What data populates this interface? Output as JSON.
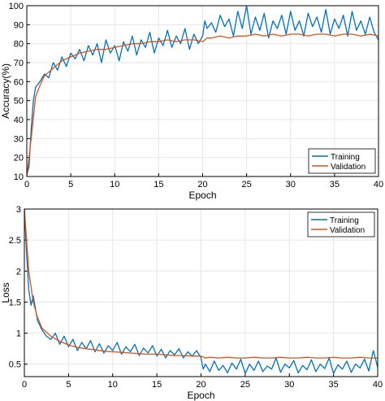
{
  "colors": {
    "training": "#0072BD",
    "validation": "#D95319",
    "grid": "#e6e6e6",
    "axis": "#000000"
  },
  "chart_data": [
    {
      "type": "line",
      "xlabel": "Epoch",
      "ylabel": "Accuracy(%)",
      "xlim": [
        0,
        40
      ],
      "ylim": [
        10,
        100
      ],
      "xticks": [
        "0",
        "5",
        "10",
        "15",
        "20",
        "25",
        "30",
        "35",
        "40"
      ],
      "yticks": [
        "10",
        "20",
        "30",
        "40",
        "50",
        "60",
        "70",
        "80",
        "90",
        "100"
      ],
      "grid": true,
      "legend_position": "bottom-right",
      "series": [
        {
          "name": "Training",
          "color_key": "training",
          "x": [
            0,
            0.25,
            0.5,
            0.75,
            1,
            1.5,
            2,
            2.5,
            3,
            3.5,
            4,
            4.5,
            5,
            5.5,
            6,
            6.5,
            7,
            7.5,
            8,
            8.5,
            9,
            9.5,
            10,
            10.5,
            11,
            11.5,
            12,
            12.5,
            13,
            13.5,
            14,
            14.5,
            15,
            15.5,
            16,
            16.5,
            17,
            17.5,
            18,
            18.5,
            19,
            19.5,
            20,
            20.25,
            20.5,
            21,
            21.5,
            22,
            22.5,
            23,
            23.5,
            24,
            24.5,
            25,
            25.5,
            26,
            26.5,
            27,
            27.5,
            28,
            28.5,
            29,
            29.5,
            30,
            30.5,
            31,
            31.5,
            32,
            32.5,
            33,
            33.5,
            34,
            34.5,
            35,
            35.5,
            36,
            36.5,
            37,
            37.5,
            38,
            38.5,
            39,
            39.5,
            40
          ],
          "values": [
            11,
            15,
            35,
            50,
            57,
            60,
            64,
            62,
            70,
            66,
            73,
            68,
            75,
            72,
            77,
            71,
            79,
            74,
            80,
            70,
            82,
            75,
            79,
            71,
            81,
            76,
            84,
            74,
            82,
            78,
            86,
            75,
            83,
            79,
            87,
            78,
            84,
            80,
            88,
            77,
            85,
            80,
            84,
            92,
            88,
            91,
            86,
            95,
            89,
            93,
            84,
            97,
            88,
            100,
            85,
            94,
            87,
            96,
            83,
            92,
            88,
            95,
            85,
            97,
            87,
            92,
            84,
            96,
            89,
            94,
            86,
            98,
            85,
            93,
            88,
            95,
            84,
            97,
            87,
            92,
            85,
            94,
            86,
            82
          ]
        },
        {
          "name": "Validation",
          "color_key": "validation",
          "x": [
            0,
            0.5,
            1,
            1.5,
            2,
            3,
            4,
            5,
            6,
            7,
            8,
            9,
            10,
            11,
            12,
            13,
            14,
            15,
            16,
            17,
            18,
            19,
            20,
            20.5,
            21,
            22,
            23,
            24,
            25,
            26,
            27,
            28,
            29,
            30,
            31,
            32,
            33,
            34,
            35,
            36,
            37,
            38,
            39,
            40
          ],
          "values": [
            10,
            30,
            52,
            58,
            63,
            67,
            71,
            73,
            75,
            76,
            77,
            77,
            78,
            79,
            80,
            80,
            81,
            81,
            82,
            81,
            82,
            82,
            81,
            83,
            83,
            84,
            83,
            84,
            84,
            85,
            84,
            85,
            84,
            85,
            85,
            84,
            85,
            85,
            84,
            85,
            85,
            84,
            85,
            84
          ]
        }
      ]
    },
    {
      "type": "line",
      "xlabel": "Epoch",
      "ylabel": "Loss",
      "xlim": [
        0,
        40
      ],
      "ylim": [
        0.3,
        3
      ],
      "xticks": [
        "0",
        "5",
        "10",
        "15",
        "20",
        "25",
        "30",
        "35",
        "40"
      ],
      "yticks": [
        "0.5",
        "1",
        "1.5",
        "2",
        "2.5",
        "3"
      ],
      "grid": true,
      "legend_position": "top-right",
      "series": [
        {
          "name": "Training",
          "color_key": "training",
          "x": [
            0,
            0.25,
            0.5,
            0.75,
            1,
            1.5,
            2,
            2.5,
            3,
            3.5,
            4,
            4.5,
            5,
            5.5,
            6,
            6.5,
            7,
            7.5,
            8,
            8.5,
            9,
            9.5,
            10,
            10.5,
            11,
            11.5,
            12,
            12.5,
            13,
            13.5,
            14,
            14.5,
            15,
            15.5,
            16,
            16.5,
            17,
            17.5,
            18,
            18.5,
            19,
            19.5,
            20,
            20.25,
            20.5,
            21,
            21.5,
            22,
            22.5,
            23,
            23.5,
            24,
            24.5,
            25,
            25.5,
            26,
            26.5,
            27,
            27.5,
            28,
            28.5,
            29,
            29.5,
            30,
            30.5,
            31,
            31.5,
            32,
            32.5,
            33,
            33.5,
            34,
            34.5,
            35,
            35.5,
            36,
            36.5,
            37,
            37.5,
            38,
            38.5,
            39,
            39.5,
            40
          ],
          "values": [
            3.0,
            2.3,
            1.7,
            1.45,
            1.6,
            1.2,
            1.05,
            0.95,
            0.9,
            1.0,
            0.82,
            0.95,
            0.78,
            0.9,
            0.72,
            0.85,
            0.75,
            0.88,
            0.7,
            0.83,
            0.68,
            0.8,
            0.72,
            0.85,
            0.66,
            0.78,
            0.7,
            0.82,
            0.64,
            0.76,
            0.68,
            0.8,
            0.63,
            0.74,
            0.6,
            0.72,
            0.65,
            0.75,
            0.6,
            0.7,
            0.63,
            0.72,
            0.6,
            0.42,
            0.5,
            0.38,
            0.55,
            0.4,
            0.48,
            0.36,
            0.52,
            0.42,
            0.58,
            0.35,
            0.5,
            0.4,
            0.55,
            0.38,
            0.47,
            0.42,
            0.6,
            0.37,
            0.5,
            0.44,
            0.56,
            0.36,
            0.48,
            0.41,
            0.57,
            0.38,
            0.5,
            0.43,
            0.6,
            0.35,
            0.49,
            0.42,
            0.55,
            0.37,
            0.5,
            0.44,
            0.58,
            0.39,
            0.72,
            0.45
          ]
        },
        {
          "name": "Validation",
          "color_key": "validation",
          "x": [
            0,
            0.5,
            1,
            1.5,
            2,
            3,
            4,
            5,
            6,
            7,
            8,
            9,
            10,
            11,
            12,
            13,
            14,
            15,
            16,
            17,
            18,
            19,
            20,
            20.5,
            21,
            22,
            23,
            24,
            25,
            26,
            27,
            28,
            29,
            30,
            31,
            32,
            33,
            34,
            35,
            36,
            37,
            38,
            39,
            40
          ],
          "values": [
            3.0,
            2.0,
            1.5,
            1.25,
            1.08,
            0.95,
            0.87,
            0.81,
            0.77,
            0.75,
            0.73,
            0.71,
            0.7,
            0.69,
            0.68,
            0.67,
            0.66,
            0.66,
            0.65,
            0.64,
            0.64,
            0.63,
            0.63,
            0.6,
            0.61,
            0.6,
            0.61,
            0.6,
            0.6,
            0.61,
            0.6,
            0.6,
            0.61,
            0.6,
            0.6,
            0.61,
            0.6,
            0.6,
            0.61,
            0.6,
            0.6,
            0.61,
            0.6,
            0.6
          ]
        }
      ]
    }
  ]
}
